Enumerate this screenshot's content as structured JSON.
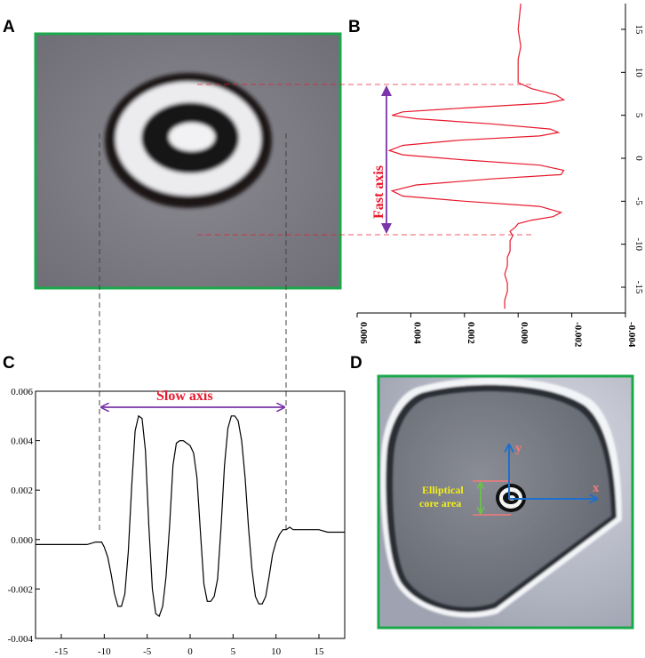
{
  "panels": {
    "a": "A",
    "b": "B",
    "c": "C",
    "d": "D"
  },
  "annotations": {
    "fast_axis": "Fast axis",
    "slow_axis": "Slow axis",
    "core_area_line1": "Elliptical",
    "core_area_line2": "core area",
    "x_axis": "x",
    "y_axis": "y"
  },
  "colors": {
    "frame_green": "#1aa84b",
    "profile_red": "#e8192c",
    "arrow_purple": "#7a35a8",
    "arrow_blue": "#1b6fd1",
    "core_label_yellow": "#f3ee1a",
    "core_arrow_green": "#6cc24a",
    "core_bound_pink": "#f07a7a"
  },
  "chart_data": [
    {
      "panel": "B",
      "type": "line",
      "orientation": "vertical",
      "description_axis_position": "right",
      "x_ticks": [
        "-0.004",
        "-0.002",
        "0.000",
        "0.002",
        "0.004",
        "0.006"
      ],
      "y_ticks": [
        "-15",
        "-10",
        "-5",
        "0",
        "5",
        "10",
        "15"
      ],
      "xlim": [
        0.006,
        -0.004
      ],
      "ylim": [
        -18,
        18
      ],
      "series": [
        {
          "x": [
            0.0005,
            0.0005,
            0.0004,
            0.0004,
            0.0005,
            0.0004,
            0.0004,
            0.0003,
            0.0003,
            0.0003,
            0.0002,
            0.0003,
            0.0001,
            0.0,
            -0.0005,
            -0.0013,
            -0.0016,
            -0.0008,
            0.002,
            0.0043,
            0.0047,
            0.0038,
            0.001,
            -0.0016,
            -0.0017,
            -0.0008,
            0.002,
            0.0043,
            0.0048,
            0.0043,
            0.0022,
            -0.0008,
            -0.0015,
            -0.0012,
            0.001,
            0.0038,
            0.0047,
            0.0043,
            0.0018,
            -0.001,
            -0.0017,
            -0.0014,
            -0.0005,
            0.0,
            0.0,
            0.0,
            -0.0001,
            0.0,
            -0.0001
          ],
          "y": [
            -17.5,
            -16.5,
            -15.5,
            -14.5,
            -13.5,
            -12.5,
            -11.5,
            -10.8,
            -10.2,
            -9.6,
            -9.0,
            -8.5,
            -8.0,
            -7.6,
            -7.2,
            -6.8,
            -6.3,
            -5.6,
            -5.0,
            -4.4,
            -3.8,
            -3.1,
            -2.4,
            -1.9,
            -1.4,
            -0.8,
            -0.2,
            0.4,
            0.9,
            1.5,
            2.1,
            2.6,
            3.0,
            3.4,
            4.0,
            4.6,
            5.0,
            5.4,
            5.9,
            6.4,
            6.8,
            7.4,
            8.1,
            8.8,
            10.0,
            11.5,
            13.0,
            15.0,
            18.0
          ]
        }
      ]
    },
    {
      "panel": "C",
      "type": "line",
      "x_ticks": [
        "-15",
        "-10",
        "-5",
        "0",
        "5",
        "10",
        "15"
      ],
      "y_ticks": [
        "-0.004",
        "-0.002",
        "0.000",
        "0.002",
        "0.004",
        "0.006"
      ],
      "xlim": [
        -18,
        18
      ],
      "ylim": [
        -0.004,
        0.006
      ],
      "series": [
        {
          "x": [
            -18,
            -16,
            -14,
            -12,
            -11,
            -10.3,
            -10,
            -9.6,
            -9.2,
            -8.8,
            -8.4,
            -8.0,
            -7.6,
            -7.2,
            -6.8,
            -6.4,
            -6.0,
            -5.6,
            -5.2,
            -4.8,
            -4.4,
            -4.0,
            -3.6,
            -3.2,
            -2.8,
            -2.4,
            -2.0,
            -1.6,
            -1.2,
            -0.8,
            -0.4,
            0.0,
            0.4,
            0.8,
            1.2,
            1.6,
            2.0,
            2.4,
            2.8,
            3.2,
            3.6,
            4.0,
            4.4,
            4.8,
            5.2,
            5.6,
            6.0,
            6.4,
            6.8,
            7.2,
            7.6,
            8.0,
            8.4,
            8.8,
            9.2,
            9.6,
            10.0,
            10.4,
            10.8,
            11.2,
            11.6,
            12.0,
            13,
            14,
            15,
            16,
            17,
            18
          ],
          "y": [
            -0.0002,
            -0.0002,
            -0.0002,
            -0.0002,
            -0.0001,
            -0.0001,
            -0.0003,
            -0.0007,
            -0.0014,
            -0.0022,
            -0.0027,
            -0.0027,
            -0.0022,
            -0.0005,
            0.0022,
            0.0044,
            0.005,
            0.0049,
            0.0036,
            0.0005,
            -0.002,
            -0.003,
            -0.0031,
            -0.0027,
            -0.0015,
            0.0005,
            0.003,
            0.0039,
            0.004,
            0.004,
            0.0039,
            0.0038,
            0.0035,
            0.0025,
            0.0003,
            -0.0018,
            -0.0025,
            -0.0025,
            -0.0023,
            -0.0016,
            0.0005,
            0.003,
            0.0045,
            0.005,
            0.005,
            0.0048,
            0.004,
            0.0025,
            0.0005,
            -0.0012,
            -0.0023,
            -0.0026,
            -0.0026,
            -0.0023,
            -0.0015,
            -0.0006,
            -0.0001,
            0.0002,
            0.0004,
            0.0004,
            0.0005,
            0.0004,
            0.0004,
            0.0004,
            0.0004,
            0.0003,
            0.0003,
            0.0003
          ]
        }
      ]
    }
  ]
}
